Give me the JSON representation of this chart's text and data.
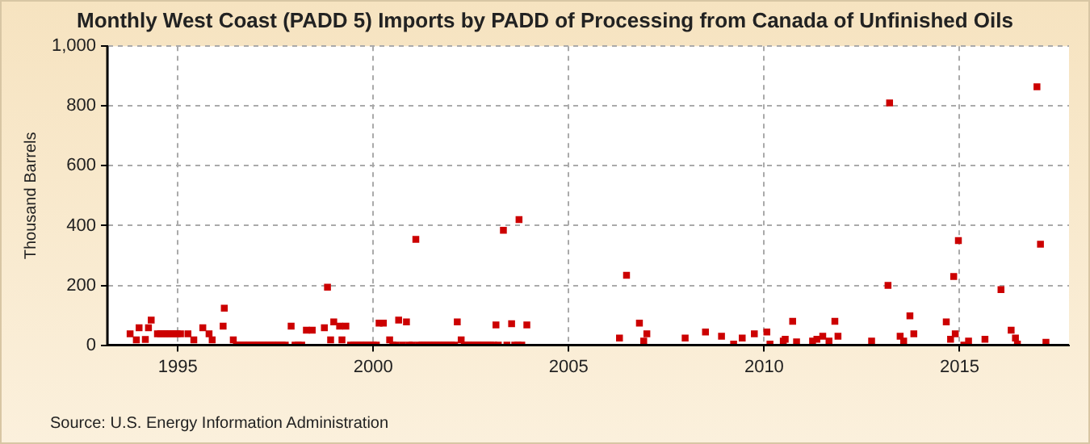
{
  "chart_data": {
    "type": "scatter",
    "title": "Monthly West Coast (PADD 5) Imports by PADD of Processing from Canada of Unfinished Oils",
    "ylabel": "Thousand Barrels",
    "annotations": [
      "Source: U.S. Energy Information Administration"
    ],
    "xlim": [
      1993.2,
      2017.8
    ],
    "xticks": [
      1995,
      2000,
      2005,
      2010,
      2015
    ],
    "ylim": [
      0,
      1000
    ],
    "yticks": [
      0,
      200,
      400,
      600,
      800,
      {
        "value": 1000,
        "label": "1,000"
      }
    ],
    "grid": true,
    "marker": "square",
    "series": [
      {
        "color": "#cc0000",
        "x": [
          1993.78,
          1993.94,
          1994.01,
          1994.17,
          1994.25,
          1994.32,
          1994.48,
          1994.56,
          1994.65,
          1994.73,
          1994.81,
          1994.9,
          1994.98,
          1995.07,
          1995.26,
          1995.41,
          1995.64,
          1995.8,
          1995.88,
          1996.16,
          1996.19,
          1996.42,
          1996.5,
          1996.58,
          1996.67,
          1996.75,
          1996.83,
          1996.92,
          1997.0,
          1997.08,
          1997.17,
          1997.25,
          1997.33,
          1997.42,
          1997.5,
          1997.58,
          1997.67,
          1997.75,
          1997.9,
          1998.0,
          1998.08,
          1998.17,
          1998.29,
          1998.44,
          1998.75,
          1998.83,
          1998.91,
          1998.99,
          1999.14,
          1999.2,
          1999.3,
          1999.42,
          1999.5,
          1999.58,
          1999.67,
          1999.75,
          1999.83,
          1999.92,
          2000.0,
          2000.08,
          2000.15,
          2000.26,
          2000.42,
          2000.5,
          2000.58,
          2000.65,
          2000.75,
          2000.85,
          2000.92,
          2001.0,
          2001.09,
          2001.17,
          2001.25,
          2001.33,
          2001.42,
          2001.5,
          2001.58,
          2001.67,
          2001.75,
          2001.83,
          2001.92,
          2002.0,
          2002.08,
          2002.15,
          2002.25,
          2002.33,
          2002.42,
          2002.5,
          2002.58,
          2002.67,
          2002.75,
          2002.83,
          2002.92,
          2003.0,
          2003.08,
          2003.14,
          2003.2,
          2003.33,
          2003.42,
          2003.54,
          2003.62,
          2003.7,
          2003.73,
          2003.8,
          2003.93,
          2006.3,
          2006.48,
          2006.81,
          2006.92,
          2007.0,
          2007.98,
          2008.5,
          2008.91,
          2009.22,
          2009.44,
          2009.75,
          2010.07,
          2010.15,
          2010.49,
          2010.54,
          2010.73,
          2010.83,
          2011.24,
          2011.35,
          2011.5,
          2011.66,
          2011.81,
          2011.89,
          2012.75,
          2013.17,
          2013.21,
          2013.48,
          2013.57,
          2013.73,
          2013.83,
          2014.66,
          2014.77,
          2014.85,
          2014.89,
          2014.97,
          2015.11,
          2015.23,
          2015.65,
          2016.06,
          2016.32,
          2016.43,
          2016.48,
          2016.98,
          2017.07,
          2017.21
        ],
        "values": [
          38,
          18,
          58,
          19,
          58,
          84,
          38,
          38,
          38,
          38,
          38,
          38,
          38,
          38,
          38,
          18,
          58,
          38,
          18,
          64,
          124,
          18,
          0,
          0,
          0,
          0,
          0,
          0,
          0,
          0,
          0,
          0,
          0,
          0,
          0,
          0,
          0,
          0,
          64,
          0,
          0,
          0,
          50,
          50,
          58,
          194,
          18,
          78,
          64,
          18,
          64,
          0,
          0,
          0,
          0,
          0,
          0,
          0,
          0,
          0,
          74,
          74,
          18,
          0,
          0,
          84,
          0,
          78,
          0,
          0,
          354,
          0,
          0,
          0,
          0,
          0,
          0,
          0,
          0,
          0,
          0,
          0,
          0,
          78,
          18,
          0,
          0,
          0,
          0,
          0,
          0,
          0,
          0,
          0,
          0,
          68,
          0,
          384,
          0,
          72,
          0,
          0,
          420,
          0,
          68,
          24,
          234,
          74,
          14,
          38,
          24,
          44,
          30,
          4,
          24,
          38,
          44,
          4,
          14,
          20,
          80,
          11,
          14,
          20,
          30,
          14,
          80,
          30,
          14,
          200,
          810,
          30,
          14,
          98,
          38,
          78,
          20,
          230,
          38,
          350,
          0,
          14,
          20,
          186,
          50,
          24,
          4,
          864,
          338,
          10
        ]
      }
    ]
  }
}
